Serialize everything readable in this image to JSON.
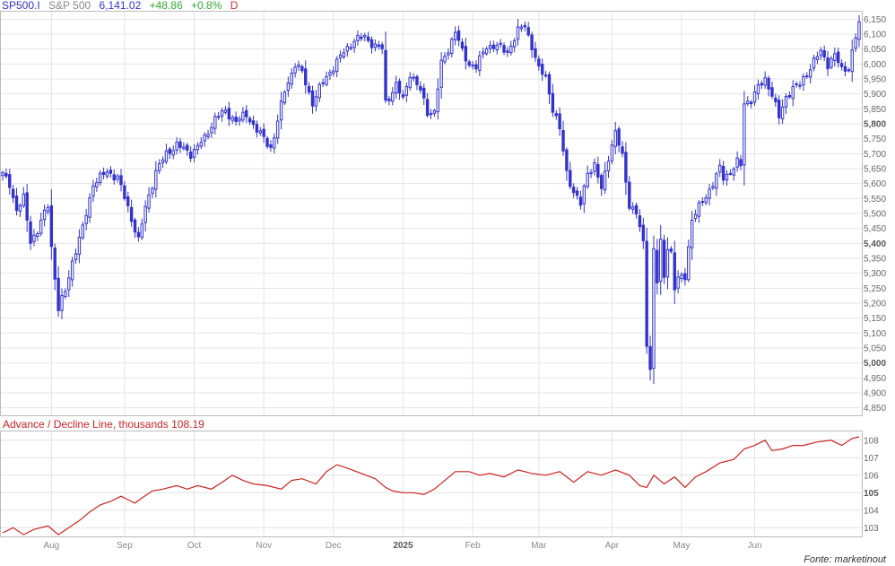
{
  "header": {
    "symbol": "SP500.I",
    "name": "S&P 500",
    "last": "6,141.02",
    "change": "+48.86",
    "change_pct": "+0.8%",
    "interval": "D"
  },
  "lower_panel": {
    "title": "Advance / Decline Line, thousands 108.19"
  },
  "source": "Fonte: marketinout",
  "colors": {
    "up": "#3333cc",
    "down": "#3333cc",
    "ad_line": "#cc2222",
    "grid": "#e4e4e4",
    "border": "#bbbbbb",
    "header_blue": "#3333cc",
    "header_gray": "#888888",
    "header_green": "#33aa33",
    "header_red": "#cc3333"
  },
  "chart_data": [
    {
      "type": "candlestick",
      "series_name": "SP500.I",
      "y_ticks": [
        4850,
        4900,
        4950,
        5000,
        5050,
        5100,
        5150,
        5200,
        5250,
        5300,
        5350,
        5400,
        5450,
        5500,
        5550,
        5600,
        5650,
        5700,
        5750,
        5800,
        5850,
        5900,
        5950,
        6000,
        6050,
        6100,
        6150
      ],
      "y_tick_labels": [
        "4,850",
        "4,900",
        "4,950",
        "5,000",
        "5,050",
        "5,100",
        "5,150",
        "5,200",
        "5,250",
        "5,300",
        "5,350",
        "5,400",
        "5,450",
        "5,500",
        "5,550",
        "5,600",
        "5,650",
        "5,700",
        "5,750",
        "5,800",
        "5,850",
        "5,900",
        "5,950",
        "6,000",
        "6,050",
        "6,100",
        "6,150"
      ],
      "bold_ticks": [
        5000,
        5400,
        5800
      ],
      "ylim": [
        4825,
        6175
      ],
      "x_labels": [
        "Aug",
        "Sep",
        "Oct",
        "Nov",
        "Dec",
        "2025",
        "Feb",
        "Mar",
        "Apr",
        "May",
        "Jun"
      ],
      "x_label_sessions": [
        14,
        35,
        55,
        75,
        95,
        115,
        135,
        154,
        175,
        195,
        216
      ],
      "bold_x_labels": [
        "2025"
      ],
      "key_points": [
        {
          "session": 0,
          "close": 5630
        },
        {
          "session": 2,
          "close": 5600
        },
        {
          "session": 4,
          "close": 5510
        },
        {
          "session": 6,
          "close": 5550
        },
        {
          "session": 8,
          "close": 5410
        },
        {
          "session": 10,
          "close": 5440
        },
        {
          "session": 13,
          "close": 5530
        },
        {
          "session": 14,
          "close": 5390
        },
        {
          "session": 16,
          "close": 5180
        },
        {
          "session": 18,
          "close": 5240
        },
        {
          "session": 20,
          "close": 5340
        },
        {
          "session": 23,
          "close": 5450
        },
        {
          "session": 26,
          "close": 5600
        },
        {
          "session": 30,
          "close": 5640
        },
        {
          "session": 33,
          "close": 5620
        },
        {
          "session": 36,
          "close": 5520
        },
        {
          "session": 39,
          "close": 5410
        },
        {
          "session": 41,
          "close": 5520
        },
        {
          "session": 44,
          "close": 5640
        },
        {
          "session": 47,
          "close": 5700
        },
        {
          "session": 50,
          "close": 5730
        },
        {
          "session": 54,
          "close": 5700
        },
        {
          "session": 58,
          "close": 5750
        },
        {
          "session": 61,
          "close": 5820
        },
        {
          "session": 64,
          "close": 5840
        },
        {
          "session": 67,
          "close": 5810
        },
        {
          "session": 70,
          "close": 5830
        },
        {
          "session": 73,
          "close": 5780
        },
        {
          "session": 77,
          "close": 5720
        },
        {
          "session": 78,
          "close": 5760
        },
        {
          "session": 81,
          "close": 5910
        },
        {
          "session": 84,
          "close": 6000
        },
        {
          "session": 86,
          "close": 5970
        },
        {
          "session": 89,
          "close": 5870
        },
        {
          "session": 92,
          "close": 5940
        },
        {
          "session": 95,
          "close": 5990
        },
        {
          "session": 98,
          "close": 6040
        },
        {
          "session": 101,
          "close": 6080
        },
        {
          "session": 104,
          "close": 6090
        },
        {
          "session": 107,
          "close": 6060
        },
        {
          "session": 109,
          "close": 6050
        },
        {
          "session": 110,
          "close": 5870
        },
        {
          "session": 113,
          "close": 5930
        },
        {
          "session": 115,
          "close": 5880
        },
        {
          "session": 117,
          "close": 5970
        },
        {
          "session": 120,
          "close": 5910
        },
        {
          "session": 122,
          "close": 5840
        },
        {
          "session": 124,
          "close": 5840
        },
        {
          "session": 126,
          "close": 6000
        },
        {
          "session": 128,
          "close": 6050
        },
        {
          "session": 130,
          "close": 6110
        },
        {
          "session": 132,
          "close": 6040
        },
        {
          "session": 134,
          "close": 6000
        },
        {
          "session": 136,
          "close": 5990
        },
        {
          "session": 139,
          "close": 6060
        },
        {
          "session": 142,
          "close": 6060
        },
        {
          "session": 145,
          "close": 6040
        },
        {
          "session": 148,
          "close": 6110
        },
        {
          "session": 150,
          "close": 6130
        },
        {
          "session": 152,
          "close": 6060
        },
        {
          "session": 154,
          "close": 5980
        },
        {
          "session": 156,
          "close": 5960
        },
        {
          "session": 158,
          "close": 5850
        },
        {
          "session": 160,
          "close": 5780
        },
        {
          "session": 162,
          "close": 5640
        },
        {
          "session": 164,
          "close": 5570
        },
        {
          "session": 166,
          "close": 5530
        },
        {
          "session": 168,
          "close": 5640
        },
        {
          "session": 170,
          "close": 5660
        },
        {
          "session": 172,
          "close": 5580
        },
        {
          "session": 174,
          "close": 5690
        },
        {
          "session": 176,
          "close": 5770
        },
        {
          "session": 178,
          "close": 5690
        },
        {
          "session": 180,
          "close": 5530
        },
        {
          "session": 182,
          "close": 5500
        },
        {
          "session": 184,
          "close": 5400
        },
        {
          "session": 185,
          "close": 5070
        },
        {
          "session": 186,
          "close": 4980
        },
        {
          "session": 187,
          "close": 5380
        },
        {
          "session": 188,
          "close": 5270
        },
        {
          "session": 189,
          "close": 5400
        },
        {
          "session": 190,
          "close": 5290
        },
        {
          "session": 191,
          "close": 5390
        },
        {
          "session": 192,
          "close": 5370
        },
        {
          "session": 193,
          "close": 5250
        },
        {
          "session": 194,
          "close": 5280
        },
        {
          "session": 196,
          "close": 5290
        },
        {
          "session": 197,
          "close": 5390
        },
        {
          "session": 198,
          "close": 5480
        },
        {
          "session": 200,
          "close": 5520
        },
        {
          "session": 202,
          "close": 5560
        },
        {
          "session": 204,
          "close": 5600
        },
        {
          "session": 206,
          "close": 5650
        },
        {
          "session": 207,
          "close": 5620
        },
        {
          "session": 209,
          "close": 5640
        },
        {
          "session": 211,
          "close": 5670
        },
        {
          "session": 212,
          "close": 5660
        },
        {
          "session": 213,
          "close": 5870
        },
        {
          "session": 215,
          "close": 5880
        },
        {
          "session": 217,
          "close": 5920
        },
        {
          "session": 219,
          "close": 5950
        },
        {
          "session": 221,
          "close": 5900
        },
        {
          "session": 223,
          "close": 5820
        },
        {
          "session": 225,
          "close": 5890
        },
        {
          "session": 227,
          "close": 5920
        },
        {
          "session": 229,
          "close": 5930
        },
        {
          "session": 231,
          "close": 5970
        },
        {
          "session": 233,
          "close": 6010
        },
        {
          "session": 235,
          "close": 6040
        },
        {
          "session": 237,
          "close": 6000
        },
        {
          "session": 239,
          "close": 6030
        },
        {
          "session": 241,
          "close": 5980
        },
        {
          "session": 243,
          "close": 5990
        },
        {
          "session": 245,
          "close": 6090
        },
        {
          "session": 246,
          "close": 6141
        }
      ],
      "last_session": 246
    },
    {
      "type": "line",
      "series_name": "Advance / Decline Line",
      "y_ticks": [
        103,
        104,
        105,
        106,
        107,
        108
      ],
      "bold_ticks": [
        105
      ],
      "ylim": [
        102.5,
        108.5
      ],
      "points": [
        {
          "session": 0,
          "value": 102.7
        },
        {
          "session": 3,
          "value": 103.0
        },
        {
          "session": 6,
          "value": 102.6
        },
        {
          "session": 9,
          "value": 102.9
        },
        {
          "session": 13,
          "value": 103.1
        },
        {
          "session": 16,
          "value": 102.6
        },
        {
          "session": 19,
          "value": 103.0
        },
        {
          "session": 22,
          "value": 103.4
        },
        {
          "session": 25,
          "value": 103.9
        },
        {
          "session": 28,
          "value": 104.3
        },
        {
          "session": 31,
          "value": 104.5
        },
        {
          "session": 34,
          "value": 104.8
        },
        {
          "session": 36,
          "value": 104.6
        },
        {
          "session": 38,
          "value": 104.4
        },
        {
          "session": 40,
          "value": 104.7
        },
        {
          "session": 43,
          "value": 105.1
        },
        {
          "session": 46,
          "value": 105.2
        },
        {
          "session": 50,
          "value": 105.4
        },
        {
          "session": 53,
          "value": 105.2
        },
        {
          "session": 56,
          "value": 105.4
        },
        {
          "session": 60,
          "value": 105.2
        },
        {
          "session": 63,
          "value": 105.6
        },
        {
          "session": 66,
          "value": 106.0
        },
        {
          "session": 69,
          "value": 105.7
        },
        {
          "session": 72,
          "value": 105.5
        },
        {
          "session": 76,
          "value": 105.4
        },
        {
          "session": 80,
          "value": 105.2
        },
        {
          "session": 83,
          "value": 105.7
        },
        {
          "session": 86,
          "value": 105.8
        },
        {
          "session": 90,
          "value": 105.5
        },
        {
          "session": 93,
          "value": 106.2
        },
        {
          "session": 96,
          "value": 106.6
        },
        {
          "session": 99,
          "value": 106.4
        },
        {
          "session": 103,
          "value": 106.1
        },
        {
          "session": 107,
          "value": 105.8
        },
        {
          "session": 110,
          "value": 105.3
        },
        {
          "session": 112,
          "value": 105.1
        },
        {
          "session": 115,
          "value": 105.0
        },
        {
          "session": 118,
          "value": 105.0
        },
        {
          "session": 121,
          "value": 104.9
        },
        {
          "session": 124,
          "value": 105.2
        },
        {
          "session": 127,
          "value": 105.7
        },
        {
          "session": 130,
          "value": 106.2
        },
        {
          "session": 134,
          "value": 106.2
        },
        {
          "session": 137,
          "value": 106.0
        },
        {
          "session": 140,
          "value": 106.1
        },
        {
          "session": 144,
          "value": 105.9
        },
        {
          "session": 148,
          "value": 106.3
        },
        {
          "session": 152,
          "value": 106.1
        },
        {
          "session": 156,
          "value": 106.0
        },
        {
          "session": 160,
          "value": 106.2
        },
        {
          "session": 164,
          "value": 105.6
        },
        {
          "session": 168,
          "value": 106.2
        },
        {
          "session": 172,
          "value": 106.0
        },
        {
          "session": 176,
          "value": 106.3
        },
        {
          "session": 180,
          "value": 106.0
        },
        {
          "session": 183,
          "value": 105.4
        },
        {
          "session": 185,
          "value": 105.3
        },
        {
          "session": 187,
          "value": 106.0
        },
        {
          "session": 190,
          "value": 105.5
        },
        {
          "session": 193,
          "value": 105.9
        },
        {
          "session": 196,
          "value": 105.3
        },
        {
          "session": 199,
          "value": 105.9
        },
        {
          "session": 202,
          "value": 106.2
        },
        {
          "session": 206,
          "value": 106.7
        },
        {
          "session": 210,
          "value": 106.9
        },
        {
          "session": 213,
          "value": 107.5
        },
        {
          "session": 216,
          "value": 107.7
        },
        {
          "session": 219,
          "value": 108.0
        },
        {
          "session": 221,
          "value": 107.4
        },
        {
          "session": 224,
          "value": 107.5
        },
        {
          "session": 227,
          "value": 107.7
        },
        {
          "session": 230,
          "value": 107.7
        },
        {
          "session": 234,
          "value": 107.9
        },
        {
          "session": 238,
          "value": 108.0
        },
        {
          "session": 241,
          "value": 107.7
        },
        {
          "session": 244,
          "value": 108.1
        },
        {
          "session": 246,
          "value": 108.19
        }
      ]
    }
  ]
}
